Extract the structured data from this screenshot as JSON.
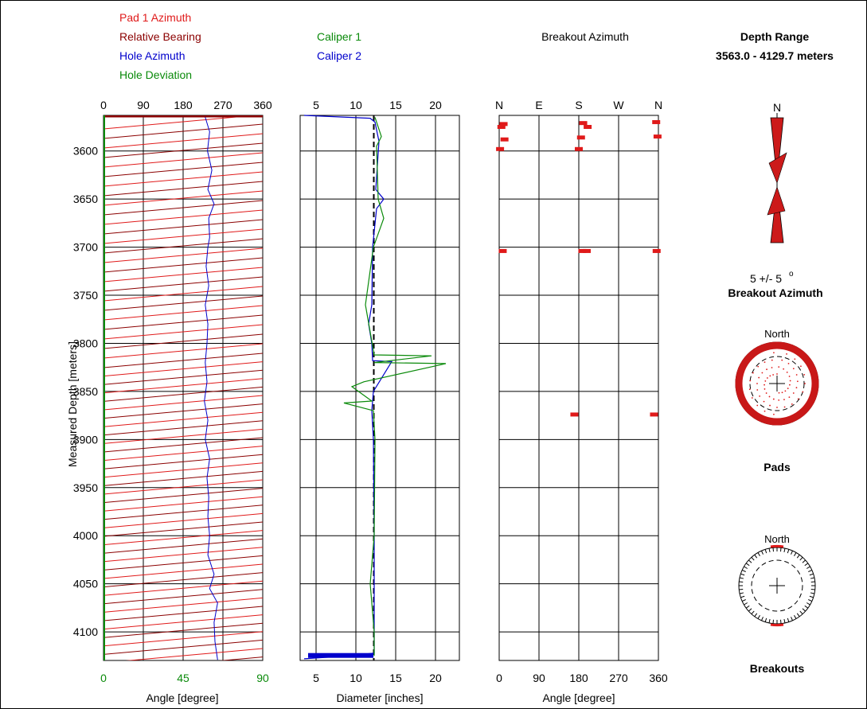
{
  "colors": {
    "pad1_azimuth": "#e01a1a",
    "relative_bearing": "#8b0000",
    "hole_azimuth": "#0000cc",
    "hole_deviation": "#0a8a0a",
    "caliper1": "#0a8a0a",
    "caliper2": "#0000cc",
    "breakout_points": "#e01a1a",
    "grid": "#000000"
  },
  "chart_data": [
    {
      "type": "line",
      "panel": "orientation-log",
      "legend": {
        "pad1_azimuth": "Pad 1 Azimuth",
        "relative_bearing": "Relative Bearing",
        "hole_azimuth": "Hole Azimuth",
        "hole_deviation": "Hole Deviation"
      },
      "y_axis": {
        "label": "Measured Depth [meters]",
        "ticks": [
          "3600",
          "3650",
          "3700",
          "3750",
          "3800",
          "3850",
          "3900",
          "3950",
          "4000",
          "4050",
          "4100"
        ],
        "tick_values": [
          3600,
          3650,
          3700,
          3750,
          3800,
          3850,
          3900,
          3950,
          4000,
          4050,
          4100
        ],
        "range": [
          3563.0,
          4129.7
        ]
      },
      "x_top": {
        "ticks": [
          "0",
          "90",
          "180",
          "270",
          "360"
        ],
        "range": [
          0,
          360
        ]
      },
      "x_bottom": {
        "label": "Angle [degree]",
        "ticks": [
          "0",
          "45",
          "90"
        ],
        "range": [
          0,
          90
        ]
      },
      "series": [
        {
          "key": "hole_azimuth",
          "depth": [
            3565,
            3580,
            3600,
            3620,
            3640,
            3655,
            3670,
            3690,
            3700,
            3720,
            3740,
            3760,
            3780,
            3800,
            3820,
            3840,
            3860,
            3880,
            3900,
            3920,
            3940,
            3960,
            3980,
            4000,
            4020,
            4040,
            4055,
            4070,
            4090,
            4110,
            4129
          ],
          "azimuth": [
            230,
            240,
            235,
            245,
            236,
            250,
            238,
            240,
            236,
            232,
            238,
            230,
            236,
            234,
            230,
            234,
            228,
            236,
            230,
            240,
            234,
            238,
            236,
            240,
            236,
            250,
            240,
            258,
            250,
            252,
            258
          ]
        },
        {
          "key": "hole_deviation",
          "depth": [
            3563,
            4129.7
          ],
          "value_deg": [
            0.5,
            0.5
          ]
        }
      ]
    },
    {
      "type": "line",
      "panel": "caliper-log",
      "legend": {
        "caliper1": "Caliper 1",
        "caliper2": "Caliper 2"
      },
      "x_top": {
        "ticks": [
          "5",
          "10",
          "15",
          "20"
        ]
      },
      "x_bottom": {
        "label": "Diameter [inches]",
        "ticks": [
          "5",
          "10",
          "15",
          "20"
        ]
      },
      "range": [
        3,
        23
      ],
      "bit_size_inches": 12.25,
      "series": [
        {
          "name": "Caliper 2",
          "depth": [
            3563,
            3566,
            3570,
            3590,
            3640,
            3650,
            3660,
            3700,
            3760,
            3780,
            3800,
            3818,
            3819,
            3850,
            3870,
            3900,
            4000,
            4100,
            4122,
            4125,
            4128
          ],
          "diameter": [
            3.5,
            11.8,
            12.4,
            12.9,
            12.5,
            13.5,
            12.6,
            12.1,
            12.0,
            11.6,
            12.0,
            12.1,
            14.5,
            12.2,
            12.0,
            12.2,
            12.3,
            12.3,
            12.3,
            9.0,
            3.5
          ]
        },
        {
          "name": "Caliper 1",
          "depth": [
            3565,
            3585,
            3595,
            3650,
            3670,
            3700,
            3760,
            3812,
            3813,
            3820,
            3821,
            3840,
            3845,
            3860,
            3862,
            3870,
            3900,
            4000,
            4050,
            4100,
            4125
          ],
          "diameter": [
            12.4,
            13.2,
            12.6,
            12.8,
            13.5,
            12.2,
            11.2,
            12.3,
            19.5,
            12.3,
            21.3,
            11.0,
            9.5,
            12.0,
            8.5,
            12.2,
            12.4,
            12.3,
            11.8,
            12.3,
            12.3
          ]
        }
      ]
    },
    {
      "type": "scatter",
      "panel": "breakout-azimuth-log",
      "title": "Breakout Azimuth",
      "x_top": {
        "ticks": [
          "N",
          "E",
          "S",
          "W",
          "N"
        ]
      },
      "x_bottom": {
        "label": "Angle [degree]",
        "ticks": [
          "0",
          "90",
          "180",
          "270",
          "360"
        ]
      },
      "range": [
        0,
        360
      ],
      "points": [
        {
          "depth": 3572,
          "azimuth": 10
        },
        {
          "depth": 3575,
          "azimuth": 5
        },
        {
          "depth": 3588,
          "azimuth": 12
        },
        {
          "depth": 3571,
          "azimuth": 190
        },
        {
          "depth": 3575,
          "azimuth": 200
        },
        {
          "depth": 3586,
          "azimuth": 185
        },
        {
          "depth": 3598,
          "azimuth": 180
        },
        {
          "depth": 3570,
          "azimuth": 355
        },
        {
          "depth": 3585,
          "azimuth": 358
        },
        {
          "depth": 3598,
          "azimuth": 2
        },
        {
          "depth": 3704,
          "azimuth": 8
        },
        {
          "depth": 3704,
          "azimuth": 188
        },
        {
          "depth": 3704,
          "azimuth": 198
        },
        {
          "depth": 3704,
          "azimuth": 356
        },
        {
          "depth": 3874,
          "azimuth": 170
        },
        {
          "depth": 3874,
          "azimuth": 350
        }
      ]
    }
  ],
  "right_panel": {
    "depth_range_title": "Depth Range",
    "depth_range_value": "3563.0 - 4129.7 meters",
    "rose_north": "N",
    "azimuth_value": "5 +/- 5",
    "azimuth_degree_symbol": "o",
    "breakout_azimuth_label": "Breakout Azimuth",
    "pads_north": "North",
    "pads_label": "Pads",
    "breakouts_north": "North",
    "breakouts_label": "Breakouts"
  }
}
